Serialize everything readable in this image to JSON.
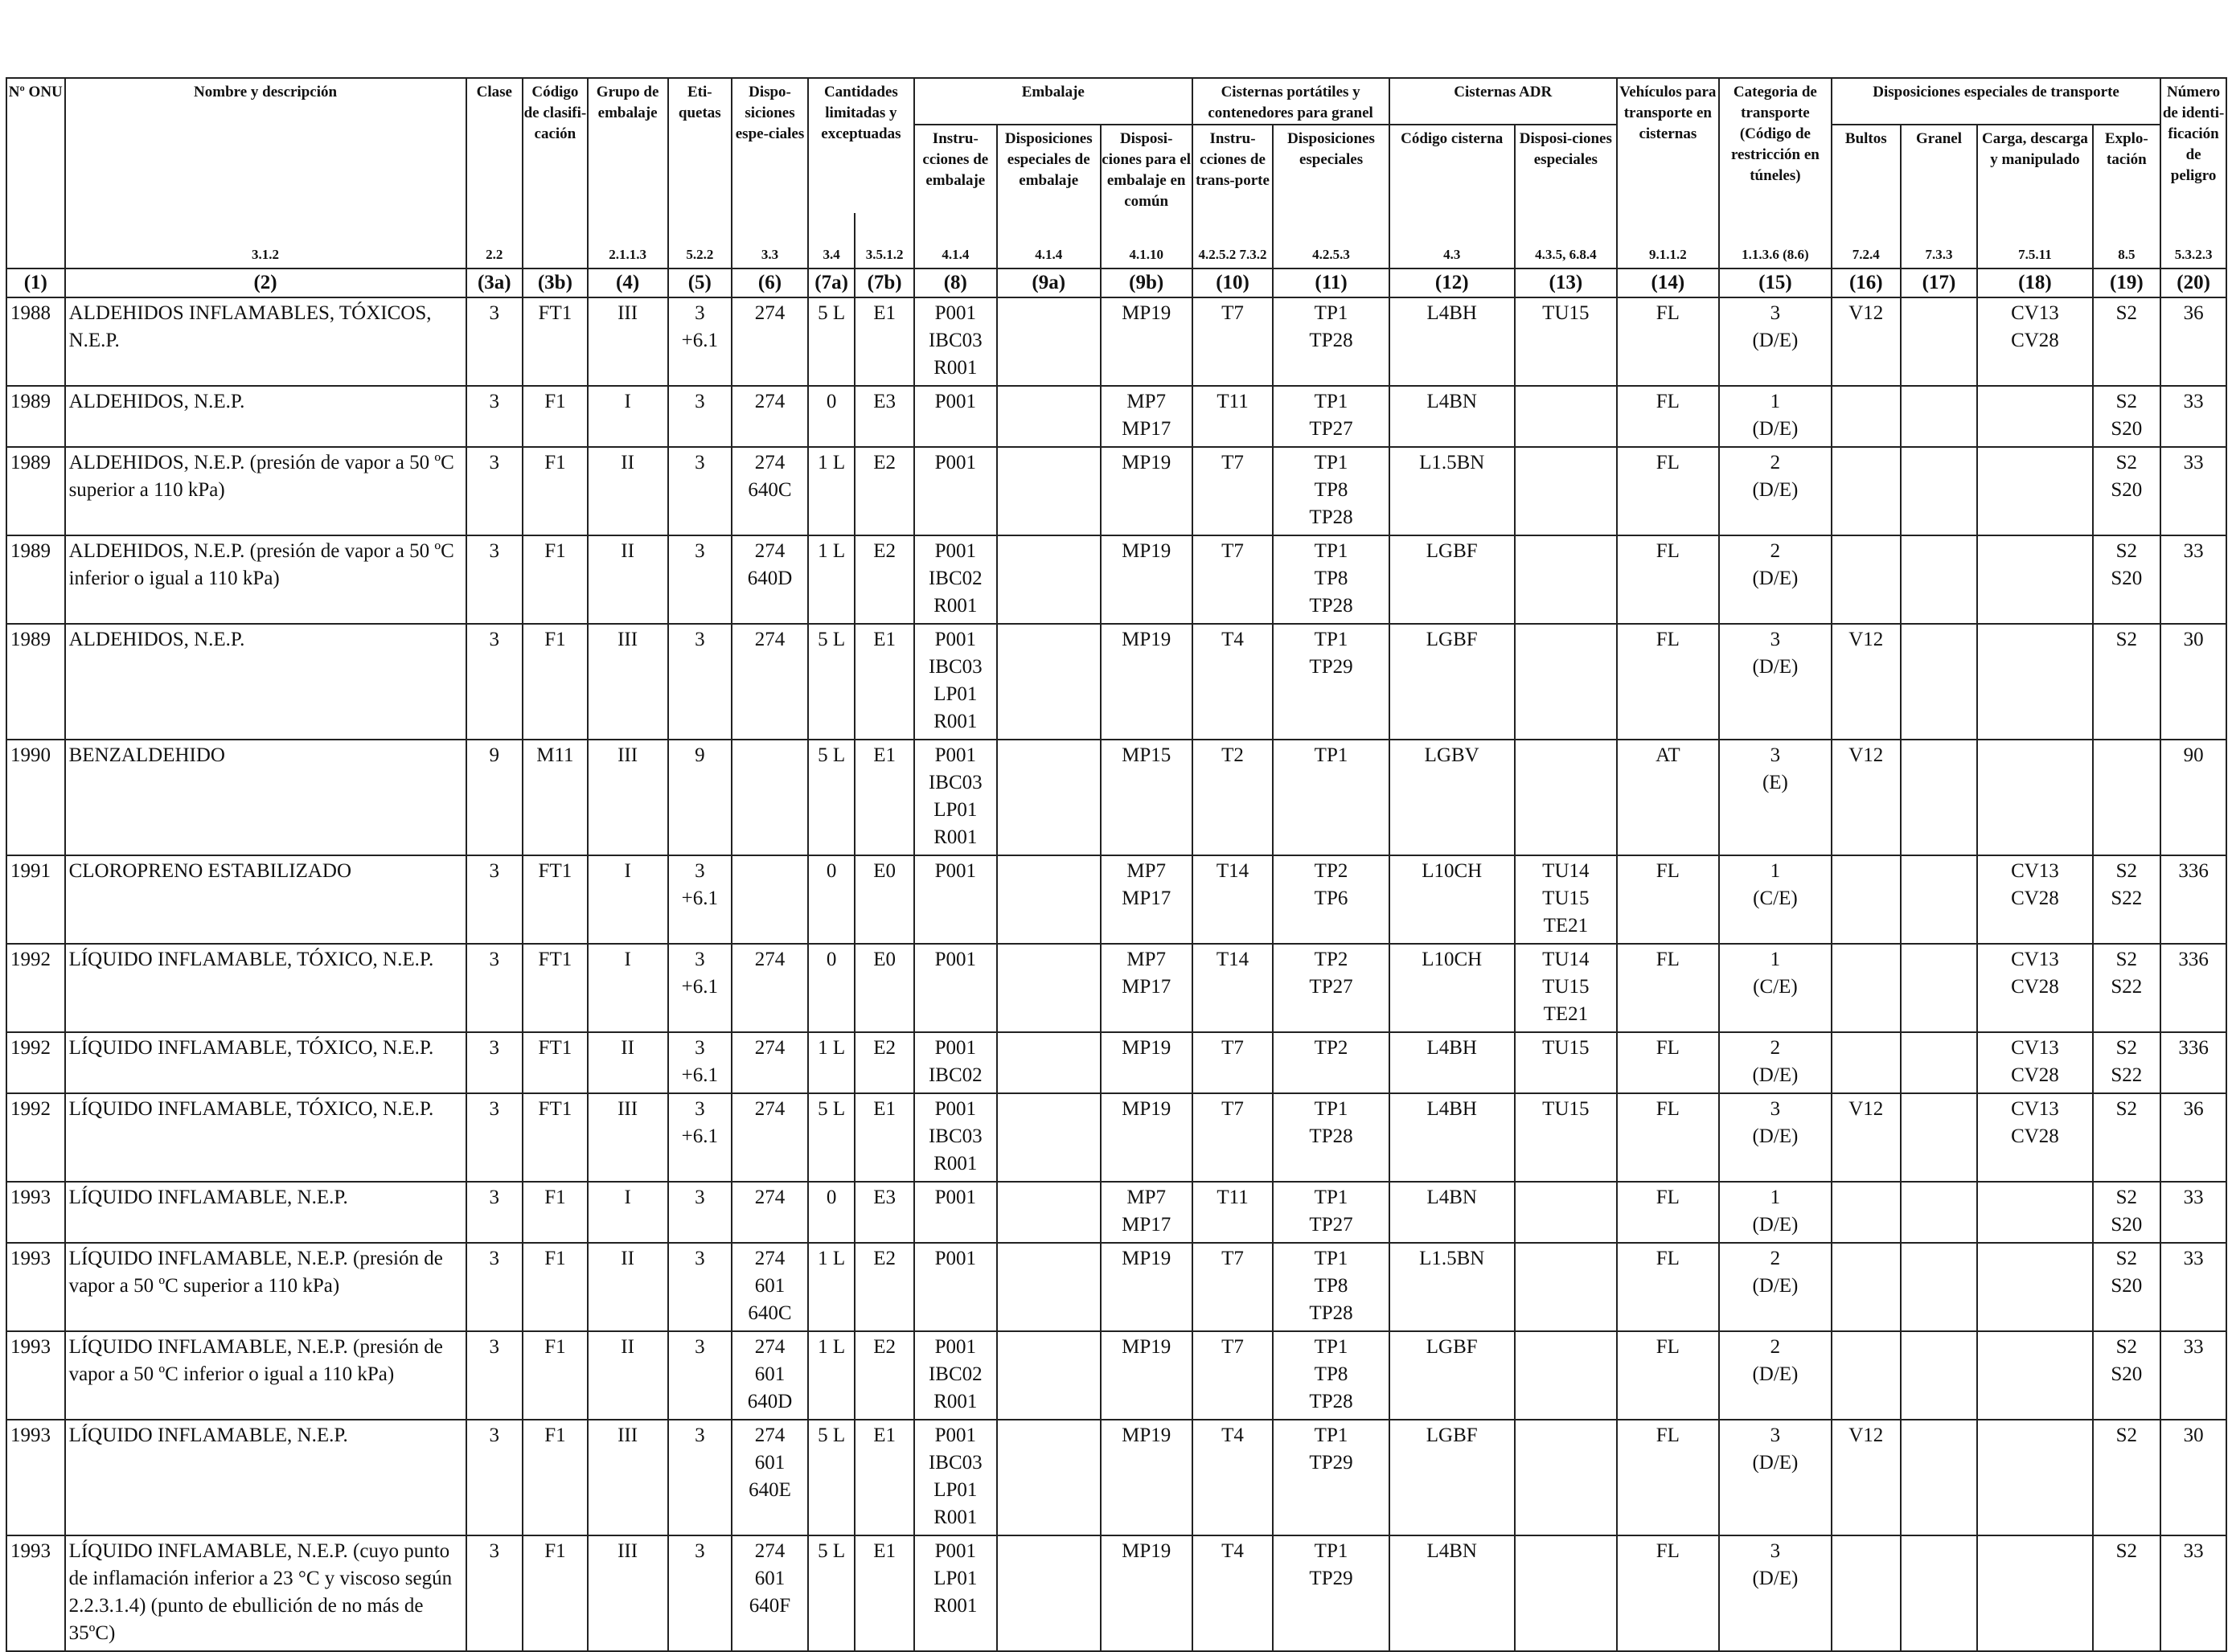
{
  "header": {
    "col1": "Nº ONU",
    "col2": "Nombre y descripción",
    "col3a": "Clase",
    "col3b": "Código de clasifi-cación",
    "col4": "Grupo de embalaje",
    "col5": "Eti-quetas",
    "col6": "Dispo-siciones espe-ciales",
    "col7": "Cantidades limitadas y exceptuadas",
    "group_embalaje": "Embalaje",
    "col8": "Instru-cciones de embalaje",
    "col9a": "Disposiciones especiales de embalaje",
    "col9b": "Disposi-ciones para el embalaje en común",
    "group_cisternas_portatiles": "Cisternas portátiles y contenedores para granel",
    "col10": "Instru-cciones de trans-porte",
    "col11": "Disposiciones especiales",
    "group_cisternas_adr": "Cisternas ADR",
    "col12": "Código cisterna",
    "col13": "Disposi-ciones especiales",
    "col14": "Vehículos para transporte en cisternas",
    "col15": "Categoria de transporte (Código de restricción en túneles)",
    "group_disposiciones": "Disposiciones especiales de transporte",
    "col16": "Bultos",
    "col17": "Granel",
    "col18": "Carga, descarga y manipulado",
    "col19": "Explo-tación",
    "col20": "Número de identi-ficación de peligro"
  },
  "refs": {
    "r1": "",
    "r2": "3.1.2",
    "r3a": "2.2",
    "r3b": "",
    "r4": "2.1.1.3",
    "r5": "5.2.2",
    "r6": "3.3",
    "r7a": "3.4",
    "r7b": "3.5.1.2",
    "r8": "4.1.4",
    "r9a": "4.1.4",
    "r9b": "4.1.10",
    "r10": "4.2.5.2 7.3.2",
    "r11": "4.2.5.3",
    "r12": "4.3",
    "r13": "4.3.5, 6.8.4",
    "r14": "9.1.1.2",
    "r15": "1.1.3.6 (8.6)",
    "r16": "7.2.4",
    "r17": "7.3.3",
    "r18": "7.5.11",
    "r19": "8.5",
    "r20": "5.3.2.3"
  },
  "colnums": [
    "(1)",
    "(2)",
    "(3a)",
    "(3b)",
    "(4)",
    "(5)",
    "(6)",
    "(7a)",
    "(7b)",
    "(8)",
    "(9a)",
    "(9b)",
    "(10)",
    "(11)",
    "(12)",
    "(13)",
    "(14)",
    "(15)",
    "(16)",
    "(17)",
    "(18)",
    "(19)",
    "(20)"
  ],
  "rows": [
    {
      "onu": "1988",
      "name": "ALDEHIDOS INFLAMABLES, TÓXICOS, N.E.P.",
      "clase": "3",
      "codigo": "FT1",
      "grupo": "III",
      "etiquetas": "3\n+6.1",
      "disp": "274",
      "lim": "5 L",
      "exc": "E1",
      "instr": "P001\nIBC03\nR001",
      "dispemb": "",
      "comun": "MP19",
      "instrport": "T7",
      "dispport": "TP1\nTP28",
      "cist": "L4BH",
      "dispcist": "TU15",
      "veh": "FL",
      "cat": "3\n(D/E)",
      "bultos": "V12",
      "granel": "",
      "carga": "CV13\nCV28",
      "explo": "S2",
      "peligro": "36",
      "h": 3
    },
    {
      "onu": "1989",
      "name": "ALDEHIDOS, N.E.P.",
      "clase": "3",
      "codigo": "F1",
      "grupo": "I",
      "etiquetas": "3",
      "disp": "274",
      "lim": "0",
      "exc": "E3",
      "instr": "P001",
      "dispemb": "",
      "comun": "MP7\nMP17",
      "instrport": "T11",
      "dispport": "TP1\nTP27",
      "cist": "L4BN",
      "dispcist": "",
      "veh": "FL",
      "cat": "1\n(D/E)",
      "bultos": "",
      "granel": "",
      "carga": "",
      "explo": "S2\nS20",
      "peligro": "33",
      "h": 2
    },
    {
      "onu": "1989",
      "name": "ALDEHIDOS, N.E.P. (presión de vapor a 50 ºC superior a 110 kPa)",
      "clase": "3",
      "codigo": "F1",
      "grupo": "II",
      "etiquetas": "3",
      "disp": "274\n640C",
      "lim": "1 L",
      "exc": "E2",
      "instr": "P001",
      "dispemb": "",
      "comun": "MP19",
      "instrport": "T7",
      "dispport": "TP1\nTP8\nTP28",
      "cist": "L1.5BN",
      "dispcist": "",
      "veh": "FL",
      "cat": "2\n(D/E)",
      "bultos": "",
      "granel": "",
      "carga": "",
      "explo": "S2\nS20",
      "peligro": "33",
      "h": 3
    },
    {
      "onu": "1989",
      "name": "ALDEHIDOS, N.E.P. (presión de vapor a 50 ºC inferior o igual a 110 kPa)",
      "clase": "3",
      "codigo": "F1",
      "grupo": "II",
      "etiquetas": "3",
      "disp": "274\n640D",
      "lim": "1 L",
      "exc": "E2",
      "instr": "P001\nIBC02\nR001",
      "dispemb": "",
      "comun": "MP19",
      "instrport": "T7",
      "dispport": "TP1\nTP8\nTP28",
      "cist": "LGBF",
      "dispcist": "",
      "veh": "FL",
      "cat": "2\n(D/E)",
      "bultos": "",
      "granel": "",
      "carga": "",
      "explo": "S2\nS20",
      "peligro": "33",
      "h": 3
    },
    {
      "onu": "1989",
      "name": "ALDEHIDOS, N.E.P.",
      "clase": "3",
      "codigo": "F1",
      "grupo": "III",
      "etiquetas": "3",
      "disp": "274",
      "lim": "5 L",
      "exc": "E1",
      "instr": "P001\nIBC03\nLP01\nR001",
      "dispemb": "",
      "comun": "MP19",
      "instrport": "T4",
      "dispport": "TP1\nTP29",
      "cist": "LGBF",
      "dispcist": "",
      "veh": "FL",
      "cat": "3\n(D/E)",
      "bultos": "V12",
      "granel": "",
      "carga": "",
      "explo": "S2",
      "peligro": "30",
      "h": 4
    },
    {
      "onu": "1990",
      "name": "BENZALDEHIDO",
      "clase": "9",
      "codigo": "M11",
      "grupo": "III",
      "etiquetas": "9",
      "disp": "",
      "lim": "5 L",
      "exc": "E1",
      "instr": "P001\nIBC03\nLP01\nR001",
      "dispemb": "",
      "comun": "MP15",
      "instrport": "T2",
      "dispport": "TP1",
      "cist": "LGBV",
      "dispcist": "",
      "veh": "AT",
      "cat": "3\n(E)",
      "bultos": "V12",
      "granel": "",
      "carga": "",
      "explo": "",
      "peligro": "90",
      "h": 4
    },
    {
      "onu": "1991",
      "name": "CLOROPRENO ESTABILIZADO",
      "clase": "3",
      "codigo": "FT1",
      "grupo": "I",
      "etiquetas": "3\n+6.1",
      "disp": "",
      "lim": "0",
      "exc": "E0",
      "instr": "P001",
      "dispemb": "",
      "comun": "MP7\nMP17",
      "instrport": "T14",
      "dispport": "TP2\nTP6",
      "cist": "L10CH",
      "dispcist": "TU14\nTU15\nTE21",
      "veh": "FL",
      "cat": "1\n(C/E)",
      "bultos": "",
      "granel": "",
      "carga": "CV13\nCV28",
      "explo": "S2\nS22",
      "peligro": "336",
      "h": 3
    },
    {
      "onu": "1992",
      "name": "LÍQUIDO INFLAMABLE, TÓXICO, N.E.P.",
      "clase": "3",
      "codigo": "FT1",
      "grupo": "I",
      "etiquetas": "3\n+6.1",
      "disp": "274",
      "lim": "0",
      "exc": "E0",
      "instr": "P001",
      "dispemb": "",
      "comun": "MP7\nMP17",
      "instrport": "T14",
      "dispport": "TP2\nTP27",
      "cist": "L10CH",
      "dispcist": "TU14\nTU15\nTE21",
      "veh": "FL",
      "cat": "1\n(C/E)",
      "bultos": "",
      "granel": "",
      "carga": "CV13\nCV28",
      "explo": "S2\nS22",
      "peligro": "336",
      "h": 3
    },
    {
      "onu": "1992",
      "name": "LÍQUIDO INFLAMABLE, TÓXICO, N.E.P.",
      "clase": "3",
      "codigo": "FT1",
      "grupo": "II",
      "etiquetas": "3\n+6.1",
      "disp": "274",
      "lim": "1 L",
      "exc": "E2",
      "instr": "P001\nIBC02",
      "dispemb": "",
      "comun": "MP19",
      "instrport": "T7",
      "dispport": "TP2",
      "cist": "L4BH",
      "dispcist": "TU15",
      "veh": "FL",
      "cat": "2\n(D/E)",
      "bultos": "",
      "granel": "",
      "carga": "CV13\nCV28",
      "explo": "S2\nS22",
      "peligro": "336",
      "h": 2
    },
    {
      "onu": "1992",
      "name": "LÍQUIDO INFLAMABLE, TÓXICO, N.E.P.",
      "clase": "3",
      "codigo": "FT1",
      "grupo": "III",
      "etiquetas": "3\n+6.1",
      "disp": "274",
      "lim": "5 L",
      "exc": "E1",
      "instr": "P001\nIBC03\nR001",
      "dispemb": "",
      "comun": "MP19",
      "instrport": "T7",
      "dispport": "TP1\nTP28",
      "cist": "L4BH",
      "dispcist": "TU15",
      "veh": "FL",
      "cat": "3\n(D/E)",
      "bultos": "V12",
      "granel": "",
      "carga": "CV13\nCV28",
      "explo": "S2",
      "peligro": "36",
      "h": 3
    },
    {
      "onu": "1993",
      "name": "LÍQUIDO INFLAMABLE, N.E.P.",
      "clase": "3",
      "codigo": "F1",
      "grupo": "I",
      "etiquetas": "3",
      "disp": "274",
      "lim": "0",
      "exc": "E3",
      "instr": "P001",
      "dispemb": "",
      "comun": "MP7\nMP17",
      "instrport": "T11",
      "dispport": "TP1\nTP27",
      "cist": "L4BN",
      "dispcist": "",
      "veh": "FL",
      "cat": "1\n(D/E)",
      "bultos": "",
      "granel": "",
      "carga": "",
      "explo": "S2\nS20",
      "peligro": "33",
      "h": 2
    },
    {
      "onu": "1993",
      "name": "LÍQUIDO INFLAMABLE, N.E.P. (presión de vapor a 50 ºC superior a 110 kPa)",
      "clase": "3",
      "codigo": "F1",
      "grupo": "II",
      "etiquetas": "3",
      "disp": "274\n601\n640C",
      "lim": "1 L",
      "exc": "E2",
      "instr": "P001",
      "dispemb": "",
      "comun": "MP19",
      "instrport": "T7",
      "dispport": "TP1\nTP8\nTP28",
      "cist": "L1.5BN",
      "dispcist": "",
      "veh": "FL",
      "cat": "2\n(D/E)",
      "bultos": "",
      "granel": "",
      "carga": "",
      "explo": "S2\nS20",
      "peligro": "33",
      "h": 3
    },
    {
      "onu": "1993",
      "name": "LÍQUIDO INFLAMABLE, N.E.P. (presión de vapor a 50 ºC inferior o igual a 110 kPa)",
      "clase": "3",
      "codigo": "F1",
      "grupo": "II",
      "etiquetas": "3",
      "disp": "274\n601\n640D",
      "lim": "1 L",
      "exc": "E2",
      "instr": "P001\nIBC02\nR001",
      "dispemb": "",
      "comun": "MP19",
      "instrport": "T7",
      "dispport": "TP1\nTP8\nTP28",
      "cist": "LGBF",
      "dispcist": "",
      "veh": "FL",
      "cat": "2\n(D/E)",
      "bultos": "",
      "granel": "",
      "carga": "",
      "explo": "S2\nS20",
      "peligro": "33",
      "h": 3
    },
    {
      "onu": "1993",
      "name": "LÍQUIDO INFLAMABLE, N.E.P.",
      "clase": "3",
      "codigo": "F1",
      "grupo": "III",
      "etiquetas": "3",
      "disp": "274\n601\n640E",
      "lim": "5 L",
      "exc": "E1",
      "instr": "P001\nIBC03\nLP01\nR001",
      "dispemb": "",
      "comun": "MP19",
      "instrport": "T4",
      "dispport": "TP1\nTP29",
      "cist": "LGBF",
      "dispcist": "",
      "veh": "FL",
      "cat": "3\n(D/E)",
      "bultos": "V12",
      "granel": "",
      "carga": "",
      "explo": "S2",
      "peligro": "30",
      "h": 4
    },
    {
      "onu": "1993",
      "name": "LÍQUIDO INFLAMABLE, N.E.P. (cuyo punto de inflamación inferior a 23 °C y viscoso según 2.2.3.1.4) (punto de ebullición de no más de 35ºC)",
      "clase": "3",
      "codigo": "F1",
      "grupo": "III",
      "etiquetas": "3",
      "disp": "274\n601\n640F",
      "lim": "5 L",
      "exc": "E1",
      "instr": "P001\nLP01\nR001",
      "dispemb": "",
      "comun": "MP19",
      "instrport": "T4",
      "dispport": "TP1\nTP29",
      "cist": "L4BN",
      "dispcist": "",
      "veh": "FL",
      "cat": "3\n(D/E)",
      "bultos": "",
      "granel": "",
      "carga": "",
      "explo": "S2",
      "peligro": "33",
      "h": 4
    }
  ]
}
